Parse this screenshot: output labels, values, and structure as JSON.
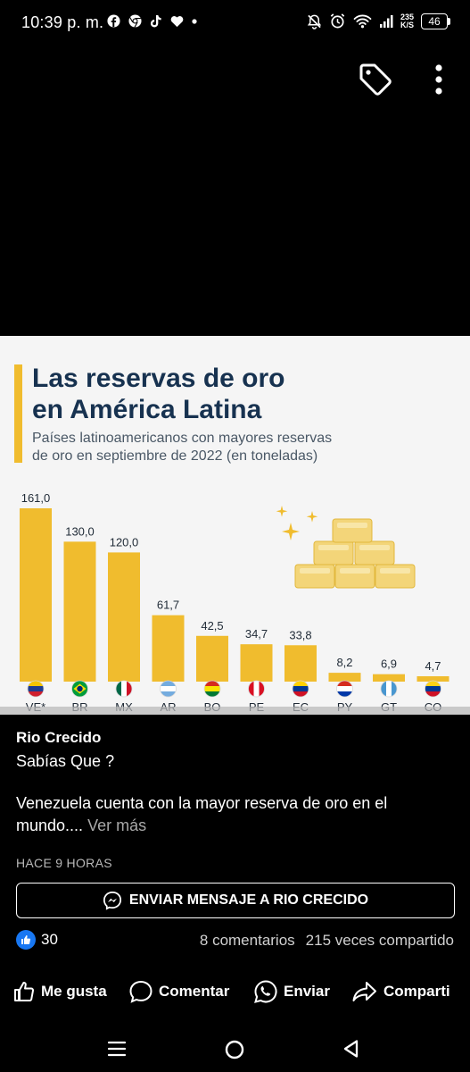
{
  "status_bar": {
    "time": "10:39 p. m.",
    "speed_value": "235",
    "speed_unit": "K/S",
    "battery": "46",
    "left_icons": [
      "facebook-icon",
      "chrome-icon",
      "tiktok-icon",
      "heart-icon",
      "dot-icon"
    ],
    "right_icons": [
      "mute-icon",
      "alarm-icon",
      "wifi-icon",
      "signal-icon"
    ]
  },
  "viewer": {
    "icons": [
      "tag-icon",
      "more-vertical-icon"
    ]
  },
  "infographic": {
    "title_line1": "Las reservas de oro",
    "title_line2": "en América Latina",
    "subtitle_line1": "Países latinoamericanos con mayores reservas",
    "subtitle_line2": "de oro en septiembre de 2022 (en toneladas)",
    "accent_color": "#f0bc2e",
    "title_color": "#173250"
  },
  "chart_data": {
    "type": "bar",
    "categories": [
      "VE*",
      "BR",
      "MX",
      "AR",
      "BO",
      "PE",
      "EC",
      "PY",
      "GT",
      "CO"
    ],
    "values": [
      161.0,
      130.0,
      120.0,
      61.7,
      42.5,
      34.7,
      33.8,
      8.2,
      6.9,
      4.7
    ],
    "value_labels": [
      "161,0",
      "130,0",
      "120,0",
      "61,7",
      "42,5",
      "34,7",
      "33,8",
      "8,2",
      "6,9",
      "4,7"
    ],
    "ylim": [
      0,
      161
    ],
    "bar_color": "#f0bc2e",
    "grid": false,
    "flag_icons": [
      "venezuela-flag-icon",
      "brazil-flag-icon",
      "mexico-flag-icon",
      "argentina-flag-icon",
      "bolivia-flag-icon",
      "peru-flag-icon",
      "ecuador-flag-icon",
      "paraguay-flag-icon",
      "guatemala-flag-icon",
      "colombia-flag-icon"
    ]
  },
  "post": {
    "author": "Rio Crecido",
    "line1": "Sabías Que ?",
    "body": "Venezuela cuenta con la mayor reserva de oro en el mundo....",
    "see_more": "Ver más",
    "time": "HACE 9 HORAS",
    "message_button": "ENVIAR MENSAJE A RIO CRECIDO",
    "likes": "30",
    "comments": "8 comentarios",
    "shares": "215 veces compartido",
    "actions": {
      "like": "Me gusta",
      "comment": "Comentar",
      "send": "Enviar",
      "share": "Comparti"
    }
  },
  "nav": {
    "icons": [
      "recent-apps-icon",
      "home-icon",
      "back-icon"
    ]
  }
}
